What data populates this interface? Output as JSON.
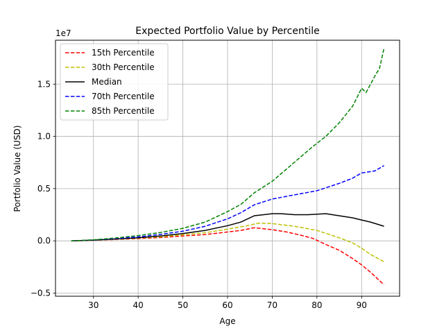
{
  "chart_data": {
    "type": "line",
    "title": "Expected Portfolio Value by Percentile",
    "xlabel": "Age",
    "ylabel": "Portfolio Value (USD)",
    "y_offset_label": "1e7",
    "xlim": [
      21.5,
      98.5
    ],
    "ylim": [
      -5.3,
      19.2
    ],
    "y_unit_scale": "1e7",
    "xticks": [
      30,
      40,
      50,
      60,
      70,
      80,
      90
    ],
    "xtick_labels": [
      "30",
      "40",
      "50",
      "60",
      "70",
      "80",
      "90"
    ],
    "yticks": [
      -5,
      0,
      5,
      10,
      15
    ],
    "ytick_labels": [
      "−0.5",
      "0.0",
      "0.5",
      "1.0",
      "1.5"
    ],
    "grid": true,
    "legend_position": "upper-left",
    "series": [
      {
        "name": "15th Percentile",
        "color": "#ff0000",
        "style": "dashed",
        "points": [
          [
            25,
            0.0
          ],
          [
            30,
            0.05
          ],
          [
            35,
            0.13
          ],
          [
            40,
            0.22
          ],
          [
            45,
            0.32
          ],
          [
            50,
            0.47
          ],
          [
            55,
            0.6
          ],
          [
            60,
            0.85
          ],
          [
            63,
            1.0
          ],
          [
            66,
            1.25
          ],
          [
            70,
            1.07
          ],
          [
            73,
            0.87
          ],
          [
            76,
            0.58
          ],
          [
            79,
            0.25
          ],
          [
            82,
            -0.35
          ],
          [
            85,
            -0.9
          ],
          [
            88,
            -1.7
          ],
          [
            90,
            -2.3
          ],
          [
            92,
            -3.0
          ],
          [
            95,
            -4.2
          ]
        ]
      },
      {
        "name": "30th Percentile",
        "color": "#bfbf00",
        "style": "dashed",
        "points": [
          [
            25,
            0.0
          ],
          [
            30,
            0.06
          ],
          [
            35,
            0.15
          ],
          [
            40,
            0.26
          ],
          [
            45,
            0.4
          ],
          [
            50,
            0.58
          ],
          [
            55,
            0.78
          ],
          [
            60,
            1.12
          ],
          [
            64,
            1.42
          ],
          [
            67,
            1.7
          ],
          [
            70,
            1.65
          ],
          [
            75,
            1.4
          ],
          [
            80,
            1.0
          ],
          [
            85,
            0.3
          ],
          [
            88,
            -0.2
          ],
          [
            90,
            -0.7
          ],
          [
            92,
            -1.3
          ],
          [
            95,
            -2.0
          ]
        ]
      },
      {
        "name": "Median",
        "color": "#000000",
        "style": "solid",
        "points": [
          [
            25,
            0.0
          ],
          [
            30,
            0.07
          ],
          [
            35,
            0.18
          ],
          [
            40,
            0.3
          ],
          [
            45,
            0.47
          ],
          [
            50,
            0.7
          ],
          [
            55,
            1.0
          ],
          [
            60,
            1.45
          ],
          [
            63,
            1.8
          ],
          [
            66,
            2.4
          ],
          [
            70,
            2.6
          ],
          [
            72,
            2.6
          ],
          [
            75,
            2.5
          ],
          [
            78,
            2.5
          ],
          [
            80,
            2.55
          ],
          [
            82,
            2.6
          ],
          [
            85,
            2.4
          ],
          [
            88,
            2.2
          ],
          [
            90,
            2.0
          ],
          [
            92,
            1.8
          ],
          [
            95,
            1.4
          ]
        ]
      },
      {
        "name": "70th Percentile",
        "color": "#0000ff",
        "style": "dashed",
        "points": [
          [
            25,
            0.0
          ],
          [
            30,
            0.08
          ],
          [
            35,
            0.22
          ],
          [
            40,
            0.38
          ],
          [
            45,
            0.62
          ],
          [
            50,
            0.92
          ],
          [
            55,
            1.4
          ],
          [
            60,
            2.1
          ],
          [
            63,
            2.7
          ],
          [
            66,
            3.45
          ],
          [
            70,
            4.0
          ],
          [
            75,
            4.4
          ],
          [
            80,
            4.8
          ],
          [
            85,
            5.5
          ],
          [
            88,
            6.0
          ],
          [
            90,
            6.5
          ],
          [
            93,
            6.7
          ],
          [
            95,
            7.2
          ]
        ]
      },
      {
        "name": "85th Percentile",
        "color": "#008000",
        "style": "dashed",
        "points": [
          [
            25,
            0.0
          ],
          [
            30,
            0.1
          ],
          [
            35,
            0.28
          ],
          [
            40,
            0.5
          ],
          [
            45,
            0.8
          ],
          [
            50,
            1.2
          ],
          [
            55,
            1.8
          ],
          [
            60,
            2.8
          ],
          [
            63,
            3.5
          ],
          [
            66,
            4.6
          ],
          [
            70,
            5.7
          ],
          [
            73,
            6.8
          ],
          [
            76,
            7.9
          ],
          [
            79,
            9.0
          ],
          [
            82,
            10.0
          ],
          [
            85,
            11.3
          ],
          [
            88,
            12.9
          ],
          [
            90,
            14.6
          ],
          [
            91,
            14.2
          ],
          [
            93,
            15.8
          ],
          [
            94,
            16.5
          ],
          [
            95,
            18.4
          ]
        ]
      }
    ]
  }
}
